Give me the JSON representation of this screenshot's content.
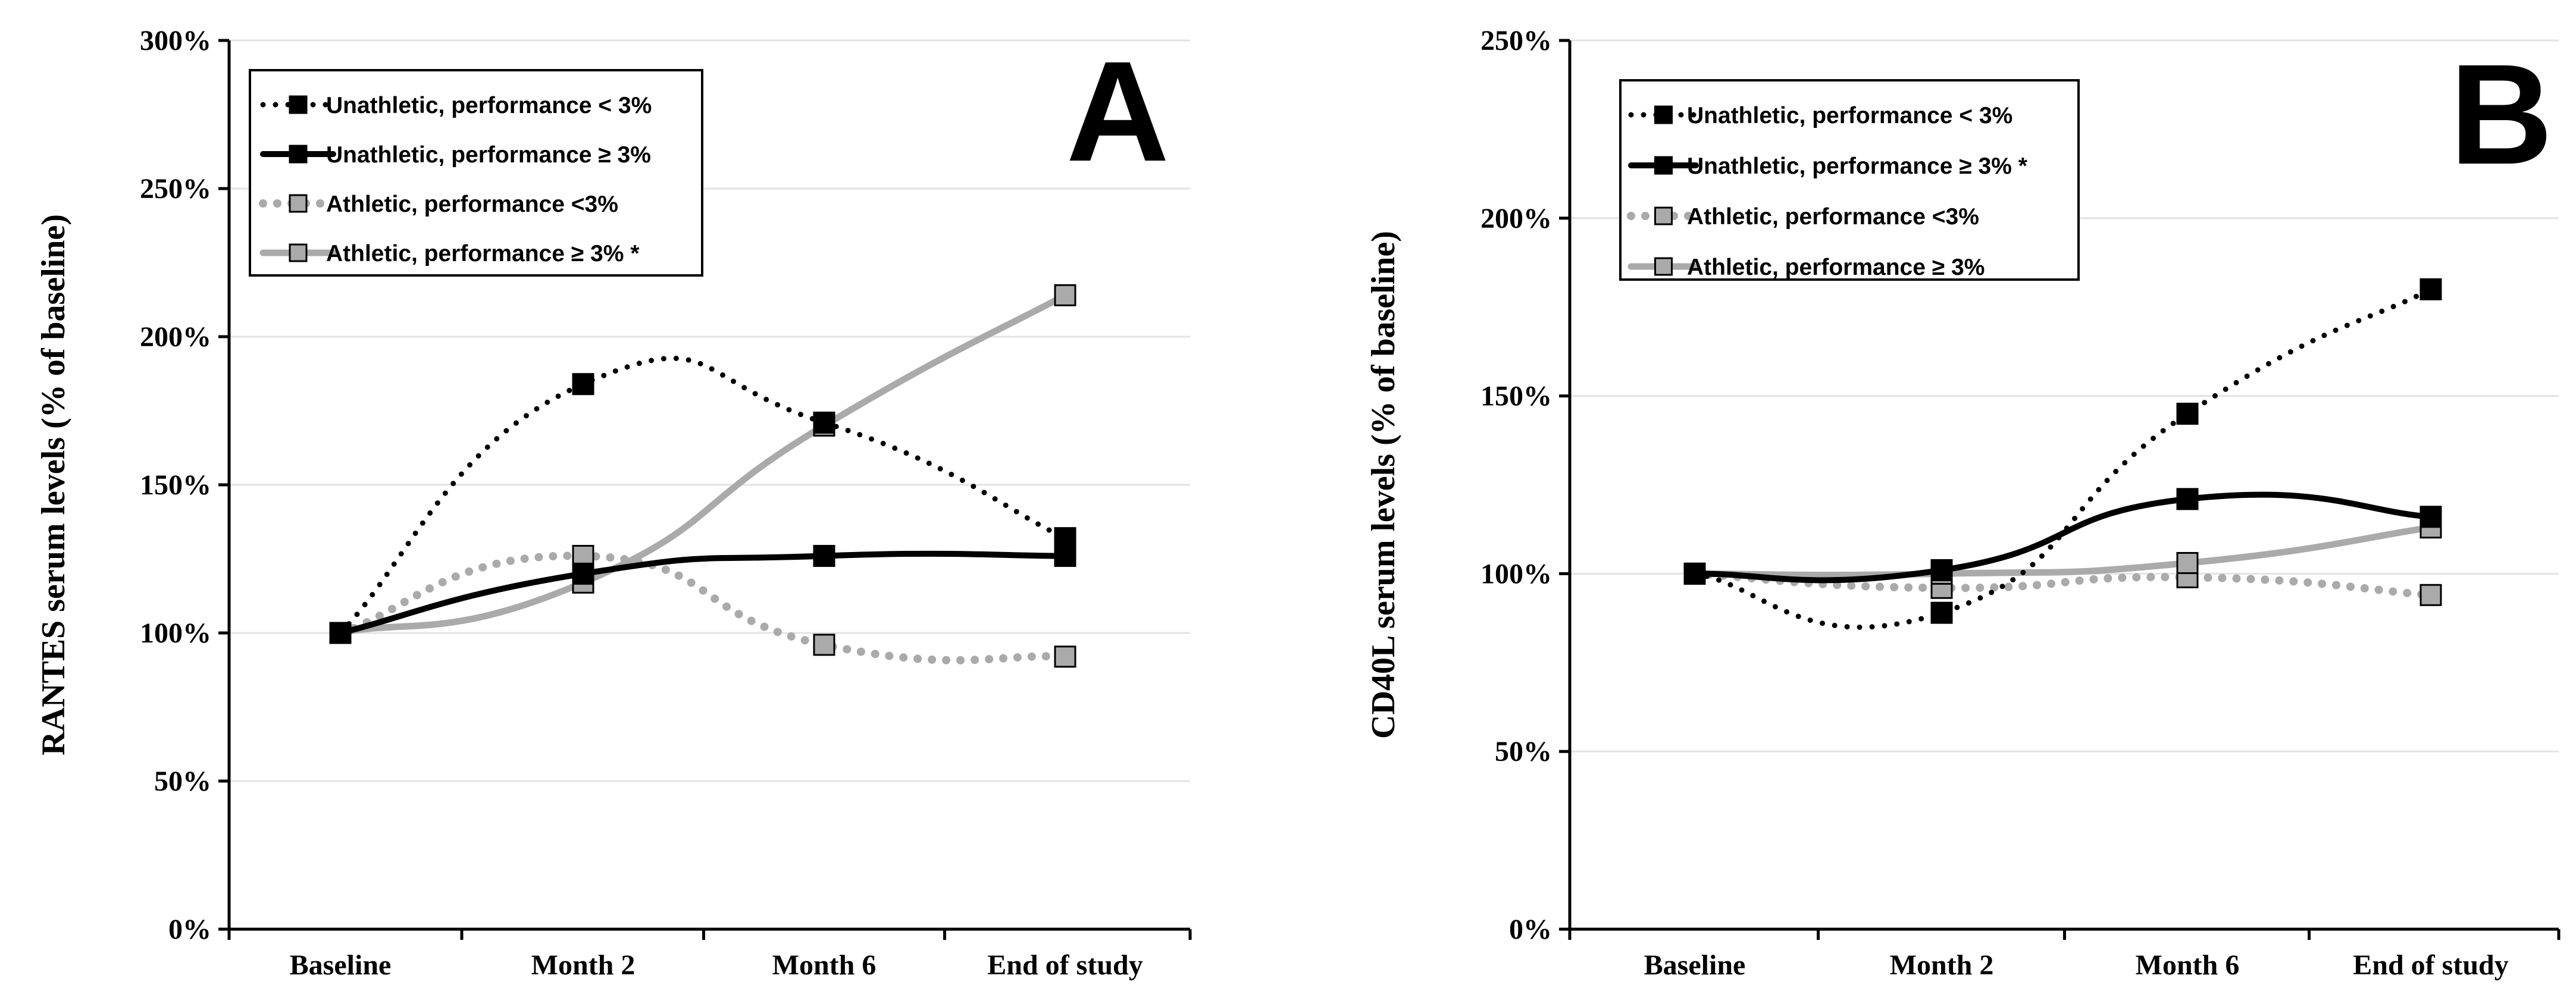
{
  "chart_data": [
    {
      "type": "line",
      "panel_label": "A",
      "ylabel": "RANTES serum levels  (% of baseline)",
      "xlabel": "",
      "categories": [
        "Baseline",
        "Month 2",
        "Month 6",
        "End of study"
      ],
      "ylim": [
        0,
        300
      ],
      "yticks": [
        0,
        50,
        100,
        150,
        200,
        250,
        300
      ],
      "ytick_labels": [
        "0%",
        "50%",
        "100%",
        "150%",
        "200%",
        "250%",
        "300%"
      ],
      "grid": true,
      "legend_position": "top-left",
      "series": [
        {
          "name": "Unathletic, performance < 3%",
          "values": [
            100,
            184,
            171,
            132
          ],
          "color": "#000000",
          "dash": "dotted",
          "marker_fill": "#000000"
        },
        {
          "name": "Unathletic, performance ≥ 3%",
          "values": [
            100,
            120,
            126,
            126
          ],
          "color": "#000000",
          "dash": "solid",
          "marker_fill": "#000000"
        },
        {
          "name": "Athletic, performance <3%",
          "values": [
            100,
            126,
            96,
            92
          ],
          "color": "#aaaaaa",
          "dash": "dotted",
          "marker_fill": "#aaaaaa"
        },
        {
          "name": "Athletic, performance ≥ 3% *",
          "values": [
            100,
            117,
            170,
            214
          ],
          "color": "#aaaaaa",
          "dash": "solid",
          "marker_fill": "#aaaaaa"
        }
      ]
    },
    {
      "type": "line",
      "panel_label": "B",
      "ylabel": "CD40L serum levels (% of baseline)",
      "xlabel": "",
      "categories": [
        "Baseline",
        "Month 2",
        "Month 6",
        "End of study"
      ],
      "ylim": [
        0,
        250
      ],
      "yticks": [
        0,
        50,
        100,
        150,
        200,
        250
      ],
      "ytick_labels": [
        "0%",
        "50%",
        "100%",
        "150%",
        "200%",
        "250%"
      ],
      "grid": true,
      "legend_position": "top-left",
      "series": [
        {
          "name": "Unathletic, performance < 3%",
          "values": [
            100,
            89,
            145,
            180
          ],
          "color": "#000000",
          "dash": "dotted",
          "marker_fill": "#000000"
        },
        {
          "name": "Unathletic, performance ≥ 3% *",
          "values": [
            100,
            101,
            121,
            116
          ],
          "color": "#000000",
          "dash": "solid",
          "marker_fill": "#000000"
        },
        {
          "name": "Athletic, performance <3%",
          "values": [
            100,
            96,
            99,
            94
          ],
          "color": "#aaaaaa",
          "dash": "dotted",
          "marker_fill": "#aaaaaa"
        },
        {
          "name": "Athletic, performance ≥ 3%",
          "values": [
            100,
            100,
            103,
            113
          ],
          "color": "#aaaaaa",
          "dash": "solid",
          "marker_fill": "#aaaaaa"
        }
      ]
    }
  ]
}
